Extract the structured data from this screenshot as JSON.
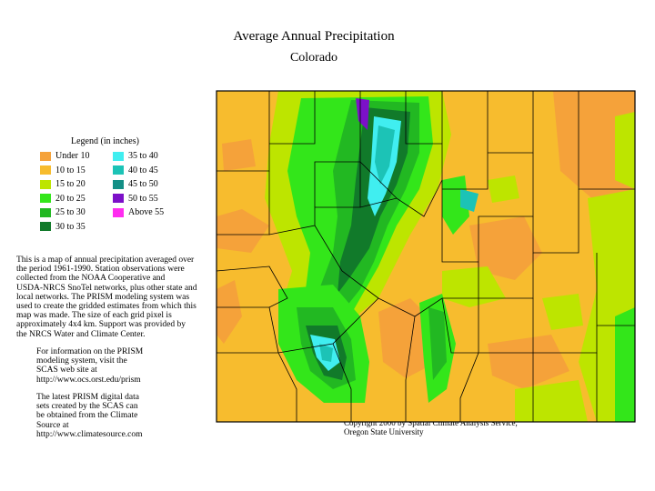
{
  "title": "Average Annual Precipitation",
  "subtitle": "Colorado",
  "legend": {
    "title": "Legend (in inches)",
    "items": [
      {
        "label": "Under 10",
        "color": "#f5a23a"
      },
      {
        "label": "10 to 15",
        "color": "#f7bc2e"
      },
      {
        "label": "15 to 20",
        "color": "#bde500"
      },
      {
        "label": "20 to 25",
        "color": "#33e61a"
      },
      {
        "label": "25 to 30",
        "color": "#22b822"
      },
      {
        "label": "30 to 35",
        "color": "#117a2a"
      },
      {
        "label": "35 to 40",
        "color": "#40eef0"
      },
      {
        "label": "40 to 45",
        "color": "#1cc3b6"
      },
      {
        "label": "45 to 50",
        "color": "#138f86"
      },
      {
        "label": "50 to 55",
        "color": "#7c10c8"
      },
      {
        "label": "Above 55",
        "color": "#ff2cf0"
      }
    ]
  },
  "description": "This is a map of annual precipitation averaged over\nthe period 1961-1990. Station observations were\ncollected from the NOAA Cooperative and\nUSDA-NRCS SnoTel networks, plus other state and\nlocal networks. The PRISM modeling system was\nused to create the gridded estimates from which this\nmap was made. The size of each grid pixel is\napproximately 4x4 km. Support was provided by\nthe NRCS Water and Climate Center.",
  "info": "For information on the PRISM\nmodeling system, visit the\nSCAS web site at\nhttp://www.ocs.orst.edu/prism",
  "data_note": "The latest PRISM digital data\nsets created by the SCAS can\nbe obtained from the Climate\nSource at\nhttp://www.climatesource.com",
  "copyright": "Copyright 2000 by Spatial Climate Analysis Service,\nOregon State University",
  "map": {
    "base_color": "#f7bc2e",
    "dry_color": "#f5a23a",
    "border_color": "#000000"
  }
}
